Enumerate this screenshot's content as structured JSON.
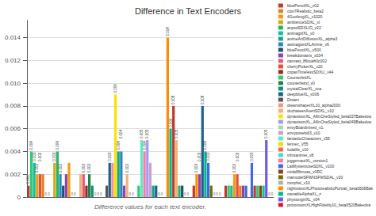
{
  "chart_data": {
    "type": "bar",
    "title": "Difference in Text Encoders",
    "xlabel": "Difference values for each text encoder.",
    "legend": "upper right",
    "grid": true,
    "tick_labels": "y",
    "data_labels": true,
    "legend_entries": [
      {
        "label": "bluePencilXL_v02",
        "color": "#c0392b"
      },
      {
        "label": "cion7Realistic_beta2",
        "color": "#e67e22"
      },
      {
        "label": "4GuofengXL_v1020",
        "color": "#f39c12"
      },
      {
        "label": "ambienceSDXL_xl",
        "color": "#d4ac0d"
      },
      {
        "label": "anpsdSDXLIO_v22",
        "color": "#28b463"
      },
      {
        "label": "animagirlXL_v0",
        "color": "#1abc9c"
      },
      {
        "label": "animeArtDiffusionXL_alpha3",
        "color": "#17a589"
      },
      {
        "label": "astmagiontXLAnime_v6",
        "color": "#2e86c1"
      },
      {
        "label": "bluePencilXL_v500",
        "color": "#1a5276"
      },
      {
        "label": "breakdomains_x034",
        "color": "#8e44ad"
      },
      {
        "label": "canvast_8flouah0c002",
        "color": "#e8567a"
      },
      {
        "label": "cherryPickerXL_v20",
        "color": "#e74c3c"
      },
      {
        "label": "copaxTimelessSDXLI_v44",
        "color": "#922b21"
      },
      {
        "label": "CounterfeitXL",
        "color": "#2ecc71"
      },
      {
        "label": "counterfeitxl_v0",
        "color": "#1e8449"
      },
      {
        "label": "crystalClearXL_cca",
        "color": "#148f77"
      },
      {
        "label": "deepblueXL_x006",
        "color": "#1f618d"
      },
      {
        "label": "Dream",
        "color": "#555555"
      },
      {
        "label": "dreamshaperXL10_alpha2000",
        "color": "#f1948a"
      },
      {
        "label": "duchateenAvertSDXL_v10",
        "color": "#f0b27a"
      },
      {
        "label": "dynavisionXL_AllInOneStyled_beta037Bakedva",
        "color": "#f9e400"
      },
      {
        "label": "dynavisionXL_AllInOneStyled_beta049Bakedva",
        "color": "#a29bfe"
      },
      {
        "label": "envyBoardmixed_v1",
        "color": "#a8d8a8"
      },
      {
        "label": "envyposebdi3_v10",
        "color": "#c8a2c8"
      },
      {
        "label": "fantasticCharacters_v55",
        "color": "#55efc4"
      },
      {
        "label": "fennec_V55",
        "color": "#ffd700"
      },
      {
        "label": "fudalife_v10",
        "color": "#ff6347"
      },
      {
        "label": "infosanimei_v8",
        "color": "#40e0d0"
      },
      {
        "label": "juggernautXL_version1",
        "color": "#fd79a8"
      },
      {
        "label": "LatMysterouseSDXL_v100",
        "color": "#4169e1"
      },
      {
        "label": "midall8tmuas_v0RC",
        "color": "#8b4513"
      },
      {
        "label": "mamodelSFWNSFWSDAL_v30",
        "color": "#6d6d00"
      },
      {
        "label": "morphel_v10",
        "color": "#b0b0b0"
      },
      {
        "label": "nightvisionXLPhotorealisticPortrait_beta0608Bak",
        "color": "#ff8c00"
      },
      {
        "label": "ownableAlphaXL_z",
        "color": "#00b894"
      },
      {
        "label": "physiongirlXL_v04",
        "color": "#6c5ce7"
      },
      {
        "label": "protovisionXLHighFidelity10_beta0520Bakedva",
        "color": "#dc143c"
      }
    ],
    "groups": [
      {
        "values": [
          0.001,
          0.004,
          0.003,
          0.002,
          0.002,
          0.002,
          0.0,
          0.0
        ],
        "colors": [
          "#c0392b",
          "#2ecc71",
          "#1abc9c",
          "#f39c12",
          "#e74c3c",
          "#e67e22",
          "#c0392b",
          "#2ecc71"
        ],
        "value_labels": [
          "0.001",
          "0.004",
          "0.003",
          "0.002",
          "0.002",
          null,
          "0",
          "0"
        ]
      },
      {
        "values": [
          0.003,
          0.004,
          0.002,
          0.001,
          0.002,
          0.003,
          0.0,
          0.0
        ],
        "colors": [
          "#d4ac0d",
          "#28b463",
          "#2e86c1",
          "#1a5276",
          "#8e44ad",
          "#f39c12",
          "#c0392b",
          "#2ecc71"
        ],
        "value_labels": [
          "0.003",
          "0.004",
          "0.002",
          null,
          null,
          null,
          "0",
          "0"
        ]
      },
      {
        "values": [
          0.002,
          0.002,
          0.001,
          0.002,
          0.001,
          0.0,
          0.0,
          0.0
        ],
        "colors": [
          "#f0b27a",
          "#e8567a",
          "#922b21",
          "#1e8449",
          "#148f77",
          "#c0392b",
          "#2ecc71",
          "#1abc9c"
        ],
        "value_labels": [
          null,
          "0.002",
          null,
          "0.002",
          null,
          "0",
          "0",
          "0"
        ]
      },
      {
        "values": [
          0.001,
          0.003,
          0.003,
          0.009,
          0.004,
          0.004,
          0.001,
          0.002,
          0.0,
          0.0
        ],
        "colors": [
          "#555555",
          "#1f618d",
          "#f1948a",
          "#f9e400",
          "#17a589",
          "#2e86c1",
          "#8e44ad",
          "#f0b27a",
          "#c0392b",
          "#2ecc71"
        ],
        "value_labels": [
          null,
          "0.003",
          null,
          "0.009",
          "0.004",
          "0.004",
          null,
          "0.002",
          "0",
          "0"
        ]
      },
      {
        "values": [
          0.001,
          0.005,
          0.004,
          0.005,
          0.003,
          0.001,
          0.001,
          0.0,
          0.0
        ],
        "colors": [
          "#2ecc71",
          "#55efc4",
          "#fd79a8",
          "#a29bfe",
          "#c8a2c8",
          "#17a589",
          "#1f618d",
          "#c0392b",
          "#2ecc71"
        ],
        "value_labels": [
          null,
          "0.005",
          "0.004",
          "0.005",
          null,
          null,
          null,
          "0",
          "0"
        ]
      },
      {
        "values": [
          0.014,
          0.006,
          0.008,
          0.005,
          0.001,
          0.001,
          0.0,
          0.0
        ],
        "colors": [
          "#ff8c00",
          "#00b894",
          "#c0392b",
          "#f0b27a",
          "#28b463",
          "#1a5276",
          "#c0392b",
          "#2ecc71"
        ],
        "value_labels": [
          "0.014",
          "0.006",
          "0.008",
          "0.005",
          null,
          null,
          "0",
          "0"
        ]
      },
      {
        "values": [
          0.001,
          0.002,
          0.002,
          0.008,
          0.004,
          0.003,
          0.001,
          0.0,
          0.0,
          0.0
        ],
        "colors": [
          "#c0392b",
          "#ff8c00",
          "#8e44ad",
          "#1f618d",
          "#00b894",
          "#4169e1",
          "#6d6d00",
          "#c0392b",
          "#2ecc71",
          "#1abc9c"
        ],
        "value_labels": [
          null,
          "0.002",
          "0.002",
          "0.008",
          "0.004",
          "0.003",
          null,
          "0",
          "0",
          "0"
        ]
      },
      {
        "values": [
          0.001,
          0.001,
          0.001,
          0.002,
          0.002,
          0.001,
          0.001,
          0.001
        ],
        "colors": [
          "#c0392b",
          "#2ecc71",
          "#1abc9c",
          "#f39c12",
          "#e74c3c",
          "#e67e22",
          "#8e44ad",
          "#4169e1"
        ],
        "value_labels": [
          null,
          null,
          null,
          "0.002",
          "0.002",
          null,
          null,
          null
        ]
      },
      {
        "values": [
          0.003,
          0.001,
          0.001,
          0.001,
          0.001,
          0.005,
          0.0,
          0.0
        ],
        "colors": [
          "#4169e1",
          "#c0392b",
          "#2ecc71",
          "#8b4513",
          "#1abc9c",
          "#6c5ce7",
          "#c0392b",
          "#2ecc71"
        ],
        "value_labels": [
          "0.003",
          null,
          null,
          null,
          null,
          "0.005",
          "0",
          "0"
        ]
      }
    ],
    "ylim": [
      0,
      0.0155
    ],
    "yticks": [
      0,
      0.002,
      0.004,
      0.006,
      0.008,
      {
        "value": 0.01,
        "label": "0.010"
      },
      0.012,
      0.014
    ]
  }
}
